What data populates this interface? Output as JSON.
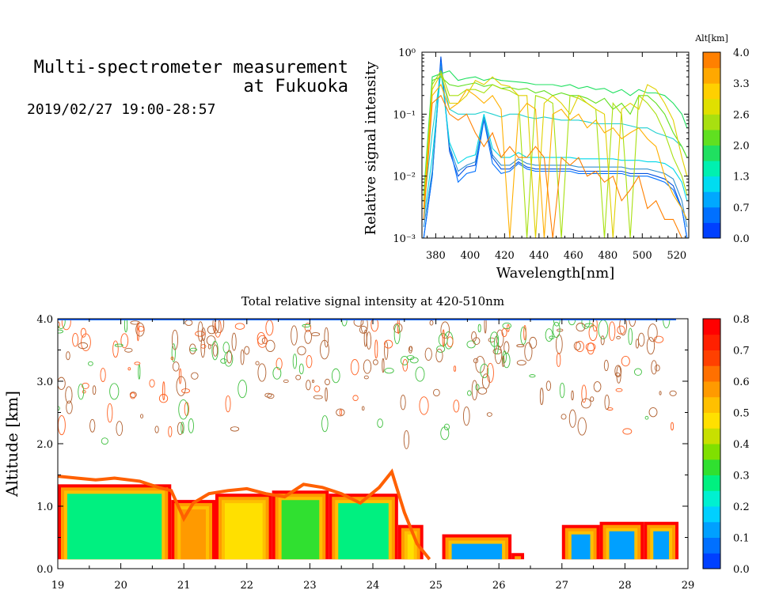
{
  "header": {
    "title_line1": "Multi-spectrometer measurement",
    "title_line2": "at Fukuoka",
    "datetime": "2019/02/27 19:00-28:57"
  },
  "chart_data": [
    {
      "type": "line",
      "yscale": "log",
      "xlabel": "Wavelength[nm]",
      "ylabel": "Relative signal intensity",
      "xlim": [
        372,
        527
      ],
      "ylim": [
        0.001,
        1
      ],
      "xticks": [
        380,
        400,
        420,
        440,
        460,
        480,
        500,
        520
      ],
      "yticks": [
        "10⁻³",
        "10⁻²",
        "10⁻¹",
        "10⁰"
      ],
      "colorbar": {
        "label": "Alt[km]",
        "ticks": [
          "0.0",
          "0.7",
          "1.3",
          "2.0",
          "2.6",
          "3.3",
          "4.0"
        ],
        "colors": [
          "#0040ff",
          "#0070ff",
          "#00a8ff",
          "#00dcf0",
          "#00f0b0",
          "#20e060",
          "#60e020",
          "#a8e010",
          "#e0e000",
          "#ffd000",
          "#ffa800",
          "#ff8000"
        ]
      },
      "x": [
        373,
        378,
        383,
        388,
        393,
        398,
        403,
        408,
        413,
        418,
        423,
        428,
        433,
        438,
        443,
        448,
        453,
        458,
        463,
        468,
        473,
        478,
        483,
        488,
        493,
        498,
        503,
        508,
        513,
        518,
        523,
        526
      ],
      "series": [
        {
          "color": "#0050e0",
          "values": [
            0.001,
            0.01,
            0.85,
            0.025,
            0.01,
            0.014,
            0.015,
            0.09,
            0.02,
            0.013,
            0.013,
            0.017,
            0.014,
            0.013,
            0.013,
            0.013,
            0.013,
            0.013,
            0.012,
            0.012,
            0.012,
            0.012,
            0.012,
            0.012,
            0.011,
            0.011,
            0.011,
            0.01,
            0.009,
            0.007,
            0.003,
            0.001
          ]
        },
        {
          "color": "#0070ff",
          "values": [
            0.001,
            0.01,
            0.7,
            0.03,
            0.008,
            0.011,
            0.012,
            0.08,
            0.016,
            0.011,
            0.012,
            0.016,
            0.013,
            0.012,
            0.012,
            0.012,
            0.012,
            0.012,
            0.011,
            0.011,
            0.011,
            0.011,
            0.011,
            0.011,
            0.01,
            0.01,
            0.01,
            0.009,
            0.008,
            0.006,
            0.003,
            0.001
          ]
        },
        {
          "color": "#3090d0",
          "values": [
            0.0015,
            0.012,
            0.6,
            0.03,
            0.012,
            0.015,
            0.017,
            0.09,
            0.022,
            0.015,
            0.015,
            0.019,
            0.016,
            0.015,
            0.015,
            0.015,
            0.015,
            0.015,
            0.014,
            0.014,
            0.014,
            0.014,
            0.014,
            0.014,
            0.013,
            0.013,
            0.013,
            0.012,
            0.011,
            0.009,
            0.004,
            0.0015
          ]
        },
        {
          "color": "#00d8e8",
          "values": [
            0.002,
            0.02,
            0.5,
            0.035,
            0.016,
            0.02,
            0.022,
            0.1,
            0.028,
            0.02,
            0.02,
            0.024,
            0.02,
            0.02,
            0.02,
            0.02,
            0.02,
            0.02,
            0.019,
            0.019,
            0.019,
            0.019,
            0.019,
            0.018,
            0.018,
            0.018,
            0.017,
            0.017,
            0.016,
            0.013,
            0.008,
            0.004
          ]
        },
        {
          "color": "#20d0d0",
          "values": [
            0.003,
            0.05,
            0.5,
            0.12,
            0.1,
            0.1,
            0.1,
            0.11,
            0.1,
            0.09,
            0.1,
            0.1,
            0.09,
            0.085,
            0.09,
            0.085,
            0.08,
            0.08,
            0.08,
            0.075,
            0.07,
            0.07,
            0.07,
            0.07,
            0.065,
            0.06,
            0.06,
            0.05,
            0.045,
            0.04,
            0.03,
            0.02
          ]
        },
        {
          "color": "#20e060",
          "values": [
            0.005,
            0.4,
            0.45,
            0.5,
            0.35,
            0.38,
            0.4,
            0.35,
            0.38,
            0.35,
            0.34,
            0.33,
            0.32,
            0.3,
            0.3,
            0.3,
            0.28,
            0.3,
            0.26,
            0.28,
            0.25,
            0.26,
            0.22,
            0.25,
            0.2,
            0.25,
            0.22,
            0.22,
            0.2,
            0.15,
            0.1,
            0.06
          ]
        },
        {
          "color": "#60e020",
          "values": [
            0.004,
            0.35,
            0.4,
            0.3,
            0.28,
            0.3,
            0.32,
            0.28,
            0.3,
            0.26,
            0.27,
            0.25,
            0.26,
            0.22,
            0.24,
            0.2,
            0.22,
            0.2,
            0.2,
            0.18,
            0.15,
            0.18,
            0.12,
            0.15,
            0.1,
            0.2,
            0.2,
            0.15,
            0.1,
            0.05,
            0.03,
            0.02
          ]
        },
        {
          "color": "#a8e010",
          "values": [
            0.004,
            0.3,
            0.5,
            0.2,
            0.2,
            0.25,
            0.25,
            0.22,
            0.3,
            0.26,
            0.24,
            0.2,
            0.001,
            0.2,
            0.18,
            0.15,
            0.001,
            0.2,
            0.18,
            0.15,
            0.12,
            0.001,
            0.15,
            0.1,
            0.001,
            0.2,
            0.15,
            0.1,
            0.05,
            0.02,
            0.01,
            0.005
          ]
        },
        {
          "color": "#e0d000",
          "values": [
            0.003,
            0.25,
            0.45,
            0.15,
            0.15,
            0.2,
            0.35,
            0.3,
            0.4,
            0.3,
            0.28,
            0.2,
            0.2,
            0.001,
            0.15,
            0.2,
            0.15,
            0.1,
            0.2,
            0.15,
            0.12,
            0.1,
            0.001,
            0.12,
            0.15,
            0.12,
            0.3,
            0.25,
            0.15,
            0.08,
            0.02,
            0.01
          ]
        },
        {
          "color": "#ffb000",
          "values": [
            0.003,
            0.2,
            0.3,
            0.12,
            0.15,
            0.25,
            0.2,
            0.15,
            0.2,
            0.12,
            0.001,
            0.1,
            0.15,
            0.12,
            0.001,
            0.1,
            0.12,
            0.08,
            0.1,
            0.06,
            0.08,
            0.05,
            0.06,
            0.04,
            0.05,
            0.06,
            0.04,
            0.03,
            0.01,
            0.005,
            0.003,
            0.002
          ]
        },
        {
          "color": "#ff8000",
          "values": [
            0.002,
            0.15,
            0.2,
            0.1,
            0.08,
            0.1,
            0.05,
            0.03,
            0.05,
            0.02,
            0.03,
            0.02,
            0.02,
            0.03,
            0.02,
            0.001,
            0.02,
            0.015,
            0.02,
            0.01,
            0.012,
            0.008,
            0.01,
            0.004,
            0.006,
            0.01,
            0.003,
            0.004,
            0.002,
            0.002,
            0.001,
            0.001
          ]
        }
      ]
    },
    {
      "type": "heatmap",
      "title": "Total relative signal intensity at 420-510nm",
      "ylabel": "Altitude [km]",
      "xlabel": "",
      "xlim": [
        19,
        29
      ],
      "ylim": [
        0,
        4
      ],
      "xticks": [
        "19",
        "20",
        "21",
        "22",
        "23",
        "24",
        "25",
        "26",
        "27",
        "28",
        "29"
      ],
      "yticks": [
        "0.0",
        "1.0",
        "2.0",
        "3.0",
        "4.0"
      ],
      "colorbar": {
        "ticks": [
          "0.0",
          "0.1",
          "0.2",
          "0.3",
          "0.4",
          "0.5",
          "0.6",
          "0.7",
          "0.8"
        ],
        "colors": [
          "#0040ff",
          "#0070ff",
          "#00a0ff",
          "#00d0ff",
          "#00f0d0",
          "#00f080",
          "#30e030",
          "#80e000",
          "#c8e000",
          "#ffe000",
          "#ffc000",
          "#ff9a00",
          "#ff7000",
          "#ff4000",
          "#ff2000",
          "#ff0000"
        ]
      },
      "boundary_top_km": [
        [
          19.0,
          1.48
        ],
        [
          19.3,
          1.45
        ],
        [
          19.6,
          1.42
        ],
        [
          19.9,
          1.45
        ],
        [
          20.3,
          1.4
        ],
        [
          20.6,
          1.3
        ],
        [
          20.8,
          1.25
        ],
        [
          21.0,
          0.8
        ],
        [
          21.15,
          1.05
        ],
        [
          21.4,
          1.2
        ],
        [
          21.7,
          1.25
        ],
        [
          22.0,
          1.28
        ],
        [
          22.3,
          1.2
        ],
        [
          22.6,
          1.15
        ],
        [
          22.9,
          1.35
        ],
        [
          23.2,
          1.3
        ],
        [
          23.5,
          1.2
        ],
        [
          23.8,
          1.05
        ],
        [
          24.1,
          1.3
        ],
        [
          24.3,
          1.55
        ],
        [
          24.5,
          0.9
        ],
        [
          24.7,
          0.4
        ],
        [
          24.9,
          0.15
        ]
      ],
      "regions": [
        {
          "x": [
            19.0,
            20.8
          ],
          "top": 1.35,
          "level": 0.25
        },
        {
          "x": [
            20.8,
            21.5
          ],
          "top": 1.1,
          "level": 0.55
        },
        {
          "x": [
            21.5,
            22.4
          ],
          "top": 1.2,
          "level": 0.45
        },
        {
          "x": [
            22.4,
            23.3
          ],
          "top": 1.25,
          "level": 0.35
        },
        {
          "x": [
            23.3,
            24.4
          ],
          "top": 1.2,
          "level": 0.3
        },
        {
          "x": [
            24.4,
            24.8
          ],
          "top": 0.7,
          "level": 0.45
        },
        {
          "x": [
            25.1,
            26.2
          ],
          "top": 0.55,
          "level": 0.15
        },
        {
          "x": [
            26.2,
            26.4
          ],
          "top": 0.25,
          "level": 0.6
        },
        {
          "x": [
            27.0,
            27.6
          ],
          "top": 0.7,
          "level": 0.12
        },
        {
          "x": [
            27.6,
            28.3
          ],
          "top": 0.75,
          "level": 0.15
        },
        {
          "x": [
            28.3,
            28.85
          ],
          "top": 0.75,
          "level": 0.12
        }
      ],
      "noise_band_km": [
        2.0,
        4.0
      ]
    }
  ]
}
